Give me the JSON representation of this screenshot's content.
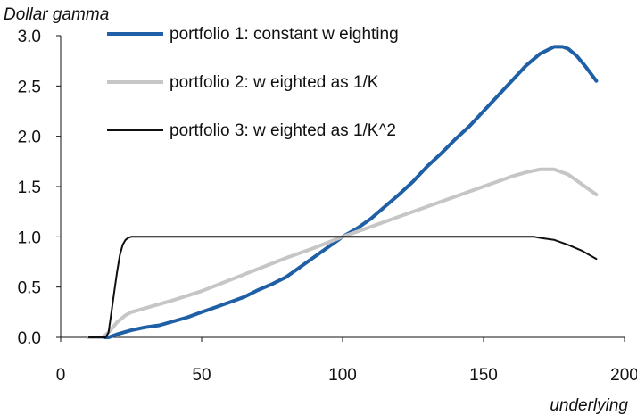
{
  "chart_data": {
    "type": "line",
    "title": "",
    "ylabel": "Dollar gamma",
    "xlabel": "underlying",
    "xlim": [
      0,
      200
    ],
    "ylim": [
      0,
      3
    ],
    "xticks": [
      0,
      50,
      100,
      150,
      200
    ],
    "yticks": [
      0.0,
      0.5,
      1.0,
      1.5,
      2.0,
      2.5,
      3.0
    ],
    "xtick_labels": [
      "0",
      "50",
      "100",
      "150",
      "200"
    ],
    "ytick_labels": [
      "0.0",
      "0.5",
      "1.0",
      "1.5",
      "2.0",
      "2.5",
      "3.0"
    ],
    "grid": false,
    "legend_position": "top-left",
    "series": [
      {
        "name": "portfolio 1: constant w eighting",
        "color": "#1f5fa6",
        "x": [
          10,
          15,
          17,
          20,
          25,
          30,
          35,
          40,
          45,
          50,
          55,
          60,
          65,
          70,
          75,
          80,
          85,
          90,
          95,
          100,
          105,
          110,
          115,
          120,
          125,
          130,
          135,
          140,
          145,
          150,
          155,
          160,
          165,
          170,
          175,
          178,
          180,
          183,
          186,
          190
        ],
        "y": [
          0,
          0,
          0,
          0.03,
          0.07,
          0.1,
          0.12,
          0.16,
          0.2,
          0.25,
          0.3,
          0.35,
          0.4,
          0.47,
          0.53,
          0.6,
          0.7,
          0.8,
          0.9,
          1.0,
          1.08,
          1.18,
          1.3,
          1.42,
          1.55,
          1.7,
          1.83,
          1.97,
          2.1,
          2.25,
          2.4,
          2.55,
          2.7,
          2.82,
          2.89,
          2.89,
          2.87,
          2.8,
          2.7,
          2.55
        ]
      },
      {
        "name": "portfolio 2: w eighted as 1/K",
        "color": "#c6c6c6",
        "x": [
          10,
          15,
          17,
          20,
          23,
          25,
          30,
          40,
          50,
          60,
          70,
          80,
          90,
          100,
          110,
          120,
          130,
          140,
          150,
          160,
          165,
          170,
          175,
          180,
          185,
          190
        ],
        "y": [
          0,
          0,
          0.05,
          0.15,
          0.22,
          0.25,
          0.29,
          0.37,
          0.46,
          0.57,
          0.68,
          0.79,
          0.89,
          1.0,
          1.1,
          1.2,
          1.3,
          1.4,
          1.5,
          1.6,
          1.64,
          1.67,
          1.67,
          1.62,
          1.52,
          1.42
        ]
      },
      {
        "name": "portfolio 3: w eighted as 1/K^2",
        "color": "#111111",
        "x": [
          10,
          16,
          17,
          18,
          19,
          20,
          21,
          22,
          23,
          24,
          25,
          30,
          50,
          100,
          150,
          168,
          170,
          175,
          180,
          185,
          190
        ],
        "y": [
          0,
          0,
          0.05,
          0.25,
          0.45,
          0.65,
          0.82,
          0.92,
          0.97,
          0.99,
          1.0,
          1.0,
          1.0,
          1.0,
          1.0,
          1.0,
          0.99,
          0.97,
          0.92,
          0.86,
          0.78
        ]
      }
    ]
  }
}
